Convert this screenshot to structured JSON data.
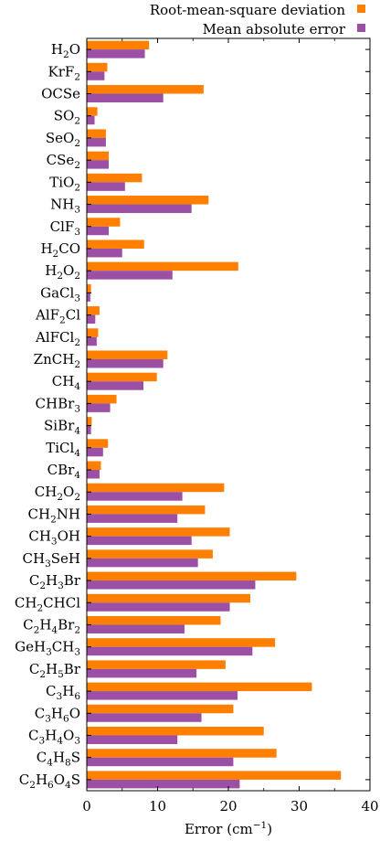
{
  "chart_data": {
    "type": "bar",
    "orientation": "horizontal",
    "xlabel": "Error (cm",
    "xlabel_sup": "−1",
    "xlabel_suffix": ")",
    "xlim": [
      0,
      40
    ],
    "xticks": [
      0,
      10,
      20,
      30,
      40
    ],
    "grid": false,
    "legend_position": "top-right",
    "categories": [
      {
        "label": [
          [
            "H",
            "n"
          ],
          [
            "2",
            "b"
          ],
          [
            "O",
            "n"
          ]
        ]
      },
      {
        "label": [
          [
            "KrF",
            "n"
          ],
          [
            "2",
            "b"
          ]
        ]
      },
      {
        "label": [
          [
            "OCSe",
            "n"
          ]
        ]
      },
      {
        "label": [
          [
            "SO",
            "n"
          ],
          [
            "2",
            "b"
          ]
        ]
      },
      {
        "label": [
          [
            "SeO",
            "n"
          ],
          [
            "2",
            "b"
          ]
        ]
      },
      {
        "label": [
          [
            "CSe",
            "n"
          ],
          [
            "2",
            "b"
          ]
        ]
      },
      {
        "label": [
          [
            "TiO",
            "n"
          ],
          [
            "2",
            "b"
          ]
        ]
      },
      {
        "label": [
          [
            "NH",
            "n"
          ],
          [
            "3",
            "b"
          ]
        ]
      },
      {
        "label": [
          [
            "ClF",
            "n"
          ],
          [
            "3",
            "b"
          ]
        ]
      },
      {
        "label": [
          [
            "H",
            "n"
          ],
          [
            "2",
            "b"
          ],
          [
            "CO",
            "n"
          ]
        ]
      },
      {
        "label": [
          [
            "H",
            "n"
          ],
          [
            "2",
            "b"
          ],
          [
            "O",
            "n"
          ],
          [
            "2",
            "b"
          ]
        ]
      },
      {
        "label": [
          [
            "GaCl",
            "n"
          ],
          [
            "3",
            "b"
          ]
        ]
      },
      {
        "label": [
          [
            "AlF",
            "n"
          ],
          [
            "2",
            "b"
          ],
          [
            "Cl",
            "n"
          ]
        ]
      },
      {
        "label": [
          [
            "AlFCl",
            "n"
          ],
          [
            "2",
            "b"
          ]
        ]
      },
      {
        "label": [
          [
            "ZnCH",
            "n"
          ],
          [
            "2",
            "b"
          ]
        ]
      },
      {
        "label": [
          [
            "CH",
            "n"
          ],
          [
            "4",
            "b"
          ]
        ]
      },
      {
        "label": [
          [
            "CHBr",
            "n"
          ],
          [
            "3",
            "b"
          ]
        ]
      },
      {
        "label": [
          [
            "SiBr",
            "n"
          ],
          [
            "4",
            "b"
          ]
        ]
      },
      {
        "label": [
          [
            "TiCl",
            "n"
          ],
          [
            "4",
            "b"
          ]
        ]
      },
      {
        "label": [
          [
            "CBr",
            "n"
          ],
          [
            "4",
            "b"
          ]
        ]
      },
      {
        "label": [
          [
            "CH",
            "n"
          ],
          [
            "2",
            "b"
          ],
          [
            "O",
            "n"
          ],
          [
            "2",
            "b"
          ]
        ]
      },
      {
        "label": [
          [
            "CH",
            "n"
          ],
          [
            "2",
            "b"
          ],
          [
            "NH",
            "n"
          ]
        ]
      },
      {
        "label": [
          [
            "CH",
            "n"
          ],
          [
            "3",
            "b"
          ],
          [
            "OH",
            "n"
          ]
        ]
      },
      {
        "label": [
          [
            "CH",
            "n"
          ],
          [
            "3",
            "b"
          ],
          [
            "SeH",
            "n"
          ]
        ]
      },
      {
        "label": [
          [
            "C",
            "n"
          ],
          [
            "2",
            "b"
          ],
          [
            "H",
            "n"
          ],
          [
            "3",
            "b"
          ],
          [
            "Br",
            "n"
          ]
        ]
      },
      {
        "label": [
          [
            "CH",
            "n"
          ],
          [
            "2",
            "b"
          ],
          [
            "CHCl",
            "n"
          ]
        ]
      },
      {
        "label": [
          [
            "C",
            "n"
          ],
          [
            "2",
            "b"
          ],
          [
            "H",
            "n"
          ],
          [
            "4",
            "b"
          ],
          [
            "Br",
            "n"
          ],
          [
            "2",
            "b"
          ]
        ]
      },
      {
        "label": [
          [
            "GeH",
            "n"
          ],
          [
            "3",
            "b"
          ],
          [
            "CH",
            "n"
          ],
          [
            "3",
            "b"
          ]
        ]
      },
      {
        "label": [
          [
            "C",
            "n"
          ],
          [
            "2",
            "b"
          ],
          [
            "H",
            "n"
          ],
          [
            "5",
            "b"
          ],
          [
            "Br",
            "n"
          ]
        ]
      },
      {
        "label": [
          [
            "C",
            "n"
          ],
          [
            "3",
            "b"
          ],
          [
            "H",
            "n"
          ],
          [
            "6",
            "b"
          ]
        ]
      },
      {
        "label": [
          [
            "C",
            "n"
          ],
          [
            "3",
            "b"
          ],
          [
            "H",
            "n"
          ],
          [
            "6",
            "b"
          ],
          [
            "O",
            "n"
          ]
        ]
      },
      {
        "label": [
          [
            "C",
            "n"
          ],
          [
            "3",
            "b"
          ],
          [
            "H",
            "n"
          ],
          [
            "4",
            "b"
          ],
          [
            "O",
            "n"
          ],
          [
            "3",
            "b"
          ]
        ]
      },
      {
        "label": [
          [
            "C",
            "n"
          ],
          [
            "4",
            "b"
          ],
          [
            "H",
            "n"
          ],
          [
            "8",
            "b"
          ],
          [
            "S",
            "n"
          ]
        ]
      },
      {
        "label": [
          [
            "C",
            "n"
          ],
          [
            "2",
            "b"
          ],
          [
            "H",
            "n"
          ],
          [
            "6",
            "b"
          ],
          [
            "O",
            "n"
          ],
          [
            "4",
            "b"
          ],
          [
            "S",
            "n"
          ]
        ]
      }
    ],
    "series": [
      {
        "name": "Root-mean-square deviation",
        "color": "#ff7f00",
        "values": [
          8.8,
          2.9,
          16.5,
          1.5,
          2.7,
          3.1,
          7.8,
          17.2,
          4.7,
          8.1,
          21.4,
          0.6,
          1.8,
          1.6,
          11.4,
          9.9,
          4.2,
          0.7,
          3.0,
          2.0,
          19.4,
          16.7,
          20.2,
          17.8,
          29.6,
          23.1,
          18.9,
          26.6,
          19.6,
          31.8,
          20.7,
          25.0,
          26.8,
          35.9
        ]
      },
      {
        "name": "Mean absolute error",
        "color": "#9b4fa5",
        "values": [
          8.2,
          2.5,
          10.8,
          1.1,
          2.7,
          3.1,
          5.4,
          14.8,
          3.1,
          5.0,
          12.1,
          0.5,
          1.2,
          1.4,
          10.8,
          8.0,
          3.3,
          0.6,
          2.3,
          1.8,
          13.5,
          12.8,
          14.8,
          15.7,
          23.8,
          20.2,
          13.8,
          23.4,
          15.5,
          21.3,
          16.2,
          12.8,
          20.7,
          21.6
        ]
      }
    ]
  }
}
